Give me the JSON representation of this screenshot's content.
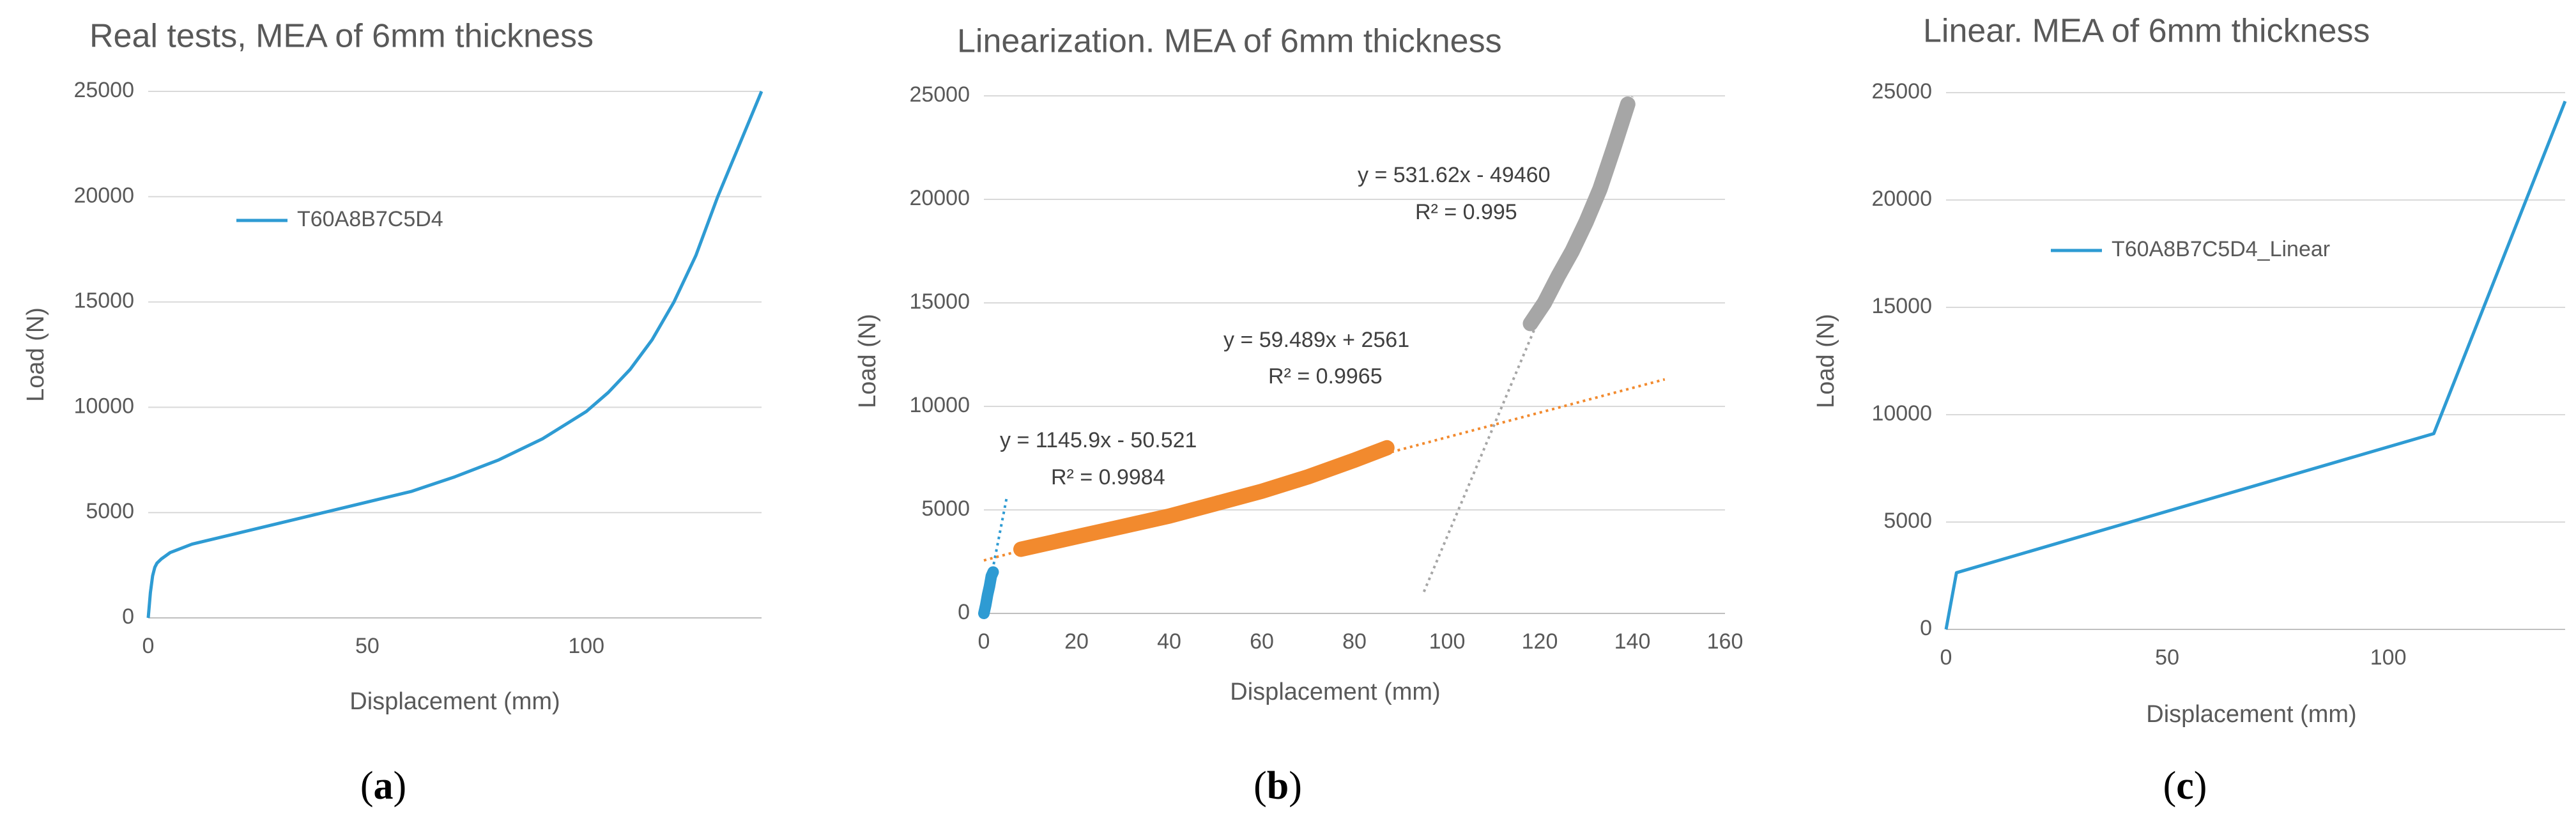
{
  "chart_data": [
    {
      "panel": "a",
      "type": "line",
      "title": "Real tests, MEA of 6mm thickness",
      "xlabel": "Displacement (mm)",
      "ylabel": "Load (N)",
      "xlim": [
        0,
        140
      ],
      "ylim": [
        0,
        25000
      ],
      "x_ticks": [
        0,
        50,
        100
      ],
      "y_ticks": [
        0,
        5000,
        10000,
        15000,
        20000,
        25000
      ],
      "grid": "horizontal",
      "legend_position": "upper-left",
      "series": [
        {
          "name": "T60A8B7C5D4",
          "color": "#2E9BD3",
          "x": [
            0,
            0.5,
            1,
            1.5,
            2,
            3,
            5,
            10,
            20,
            30,
            40,
            50,
            60,
            70,
            80,
            90,
            100,
            105,
            110,
            115,
            120,
            125,
            130,
            135,
            140
          ],
          "y": [
            0,
            1200,
            2000,
            2400,
            2600,
            2800,
            3100,
            3500,
            4000,
            4500,
            5000,
            5500,
            6000,
            6700,
            7500,
            8500,
            9800,
            10700,
            11800,
            13200,
            15000,
            17200,
            20000,
            22500,
            25000
          ]
        }
      ]
    },
    {
      "panel": "b",
      "type": "scatter",
      "title": "Linearization. MEA of 6mm thickness",
      "xlabel": "Displacement (mm)",
      "ylabel": "Load (N)",
      "xlim": [
        0,
        160
      ],
      "ylim": [
        0,
        25000
      ],
      "x_ticks": [
        0,
        20,
        40,
        60,
        80,
        100,
        120,
        140,
        160
      ],
      "y_ticks": [
        0,
        5000,
        10000,
        15000,
        20000,
        25000
      ],
      "grid": "horizontal",
      "series": [
        {
          "color": "#2E9BD3",
          "x_range": [
            0,
            2
          ],
          "trend": {
            "slope": 1145.9,
            "intercept": -50.521,
            "x_range": [
              0,
              5
            ],
            "equation": "y = 1145.9x - 50.521",
            "r2": "R² = 0.9984"
          }
        },
        {
          "color": "#F28A2E",
          "x_range": [
            8,
            87
          ],
          "points": [
            [
              8,
              3100
            ],
            [
              20,
              3700
            ],
            [
              30,
              4200
            ],
            [
              40,
              4700
            ],
            [
              50,
              5300
            ],
            [
              60,
              5900
            ],
            [
              70,
              6600
            ],
            [
              80,
              7400
            ],
            [
              87,
              8000
            ]
          ],
          "trend": {
            "slope": 59.489,
            "intercept": 2561,
            "x_range": [
              0,
              147
            ],
            "equation": "y = 59.489x + 2561",
            "r2": "R² = 0.9965"
          }
        },
        {
          "color": "#A6A6A6",
          "x_range": [
            118,
            139
          ],
          "points": [
            [
              118,
              14000
            ],
            [
              121,
              15000
            ],
            [
              124,
              16300
            ],
            [
              127,
              17500
            ],
            [
              130,
              18900
            ],
            [
              133,
              20500
            ],
            [
              136,
              22500
            ],
            [
              139,
              24600
            ]
          ],
          "trend": {
            "slope": 531.62,
            "intercept": -49460,
            "x_range": [
              95,
              140
            ],
            "equation": "y = 531.62x - 49460",
            "r2": "R² = 0.995"
          }
        }
      ]
    },
    {
      "panel": "c",
      "type": "line",
      "title": "Linear. MEA of 6mm thickness",
      "xlabel": "Displacement (mm)",
      "ylabel": "Load (N)",
      "xlim": [
        0,
        140
      ],
      "ylim": [
        0,
        25000
      ],
      "x_ticks": [
        0,
        50,
        100
      ],
      "y_ticks": [
        0,
        5000,
        10000,
        15000,
        20000,
        25000
      ],
      "grid": "horizontal",
      "legend_position": "upper-left",
      "series": [
        {
          "name": "T60A8B7C5D4_Linear",
          "color": "#2E9BD3",
          "x": [
            0,
            2.35,
            110.3,
            140
          ],
          "y": [
            0,
            2640,
            9120,
            24600
          ]
        }
      ]
    }
  ],
  "captions": [
    "a",
    "b",
    "c"
  ]
}
